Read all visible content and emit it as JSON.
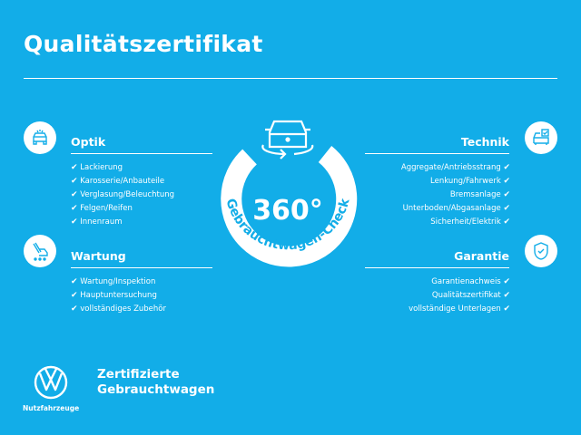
{
  "title": "Qualitätszertifikat",
  "colors": {
    "background": "#12ade8",
    "foreground": "#ffffff"
  },
  "badge": {
    "value": "360°",
    "label": "Gebrauchtwagen-Check",
    "icon": "car-rotate-icon"
  },
  "sections": {
    "optik": {
      "title": "Optik",
      "icon": "car-front-icon",
      "items": [
        "Lackierung",
        "Karosserie/Anbauteile",
        "Verglasung/Beleuchtung",
        "Felgen/Reifen",
        "Innenraum"
      ]
    },
    "wartung": {
      "title": "Wartung",
      "icon": "maintenance-icon",
      "items": [
        "Wartung/Inspektion",
        "Hauptuntersuchung",
        "vollständiges Zubehör"
      ]
    },
    "technik": {
      "title": "Technik",
      "icon": "car-checklist-icon",
      "items": [
        "Aggregate/Antriebsstrang",
        "Lenkung/Fahrwerk",
        "Bremsanlage",
        "Unterboden/Abgasanlage",
        "Sicherheit/Elektrik"
      ]
    },
    "garantie": {
      "title": "Garantie",
      "icon": "shield-check-icon",
      "items": [
        "Garantienachweis",
        "Qualitätszertifikat",
        "vollständige Unterlagen"
      ]
    }
  },
  "check": "✔",
  "footer": {
    "brand_line1": "Zertifizierte",
    "brand_line2": "Gebrauchtwagen",
    "logo_caption": "Nutzfahrzeuge",
    "logo": "vw-logo"
  }
}
